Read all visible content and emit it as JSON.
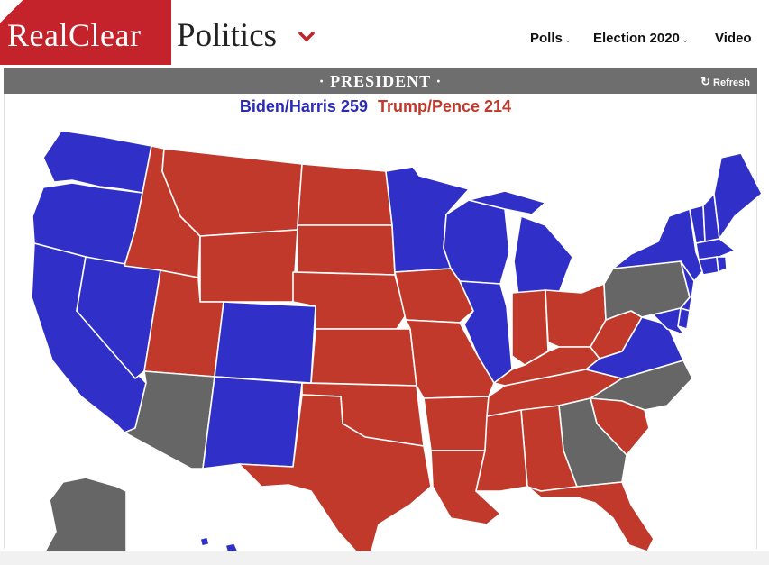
{
  "header": {
    "logo_left": "RealClear",
    "logo_right": "Politics",
    "nav": [
      {
        "label": "Polls",
        "has_dropdown": true
      },
      {
        "label": "Election 2020",
        "has_dropdown": true
      },
      {
        "label": "Video",
        "has_dropdown": false
      }
    ],
    "logo_color": "#c4232b"
  },
  "banner": {
    "title": "· PRESIDENT ·",
    "refresh_label": "Refresh",
    "refresh_icon": "refresh-icon"
  },
  "tally": {
    "dem_label": "Biden/Harris 259",
    "rep_label": "Trump/Pence 214"
  },
  "map": {
    "colors": {
      "dem": "#3030c8",
      "rep": "#c0392b",
      "tossup": "#666666"
    },
    "states": {
      "WA": "dem",
      "OR": "dem",
      "CA": "dem",
      "NV": "dem",
      "CO": "dem",
      "NM": "dem",
      "MN": "dem",
      "WI": "dem",
      "MI": "dem",
      "IL": "dem",
      "VA": "dem",
      "NY": "dem",
      "ME": "dem",
      "VT": "dem",
      "NH": "dem",
      "MA": "dem",
      "CT": "dem",
      "RI": "dem",
      "NJ": "dem",
      "DE": "dem",
      "MD": "dem",
      "HI": "dem",
      "ID": "rep",
      "MT": "rep",
      "WY": "rep",
      "UT": "rep",
      "ND": "rep",
      "SD": "rep",
      "NE": "rep",
      "KS": "rep",
      "OK": "rep",
      "TX": "rep",
      "IA": "rep",
      "MO": "rep",
      "AR": "rep",
      "LA": "rep",
      "IN": "rep",
      "OH": "rep",
      "KY": "rep",
      "WV": "rep",
      "TN": "rep",
      "MS": "rep",
      "AL": "rep",
      "SC": "rep",
      "FL": "rep",
      "AZ": "tossup",
      "PA": "tossup",
      "NC": "tossup",
      "GA": "tossup",
      "AK": "tossup"
    }
  }
}
